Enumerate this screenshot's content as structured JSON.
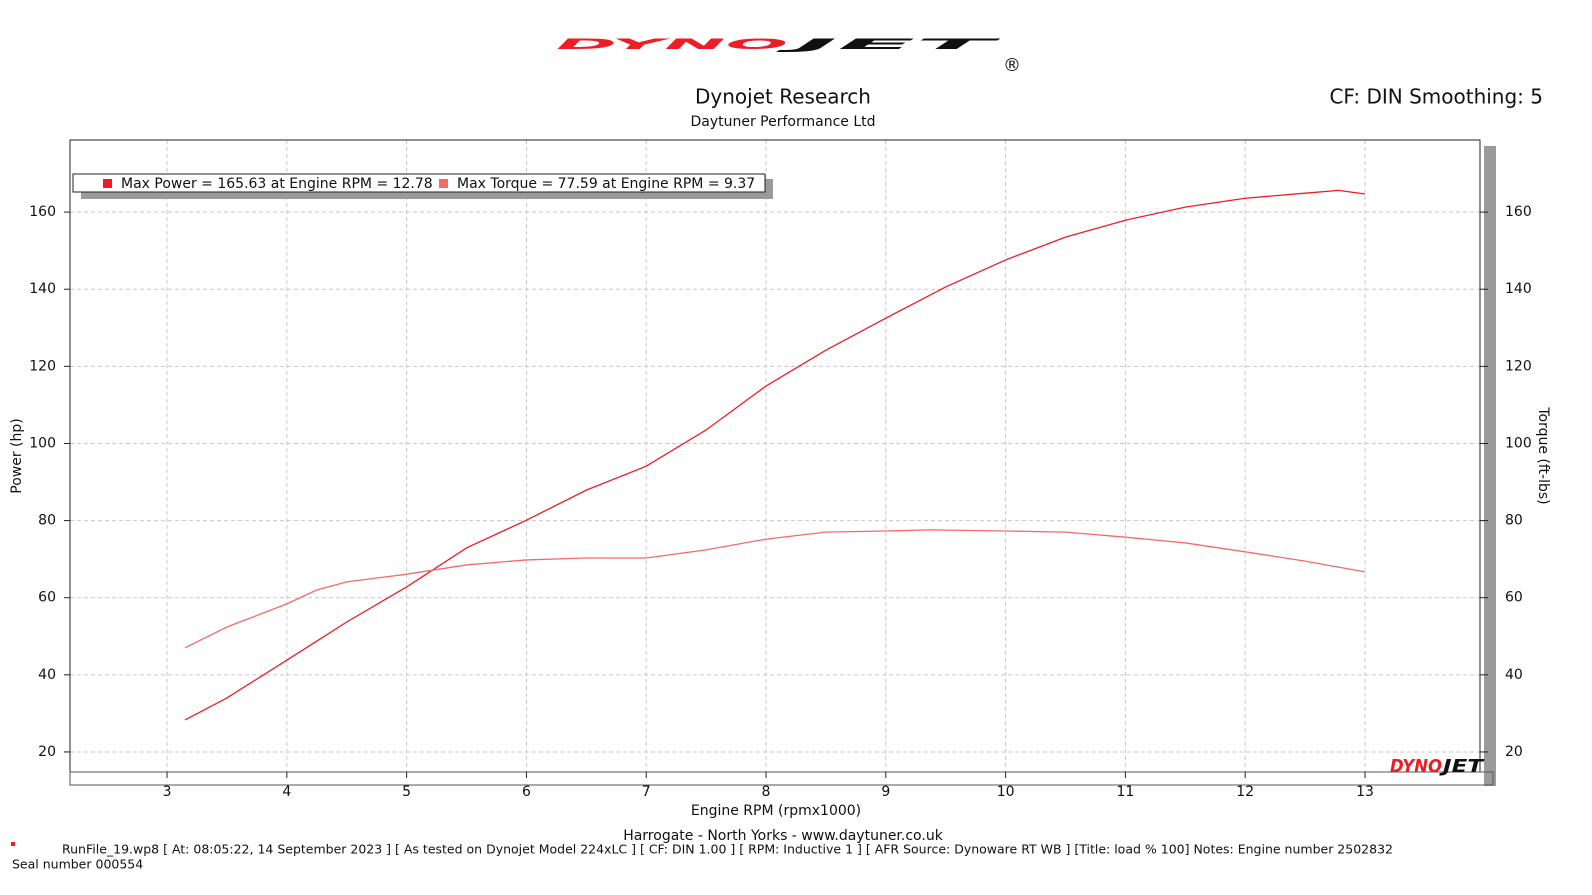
{
  "chart_data": {
    "type": "line",
    "logo_parts": [
      "DYNO",
      "JET",
      "®"
    ],
    "title": "Dynojet Research",
    "subtitle": "Daytuner Performance Ltd",
    "settings_label": "CF: DIN Smoothing: 5",
    "x_label": "Engine RPM (rpmx1000)",
    "y_label": "Power (hp)",
    "y2_label": "Torque (ft-lbs)",
    "footer": "Harrogate - North Yorks - www.daytuner.co.uk",
    "run_info": "RunFile_19.wp8 [ At: 08:05:22, 14 September 2023 ] [ As tested on Dynojet Model 224xLC ] [ CF: DIN 1.00 ] [ RPM: Inductive 1 ] [ AFR Source: Dynoware RT WB ] [Title:   load  %  100]  Notes: Engine number 2502832",
    "seal": "Seal number 000554",
    "xlim": [
      2.19,
      13.96
    ],
    "xticks": [
      3,
      4,
      5,
      6,
      7,
      8,
      9,
      10,
      11,
      12,
      13
    ],
    "ylim": [
      14.8,
      178.7
    ],
    "yticks": [
      20,
      40,
      60,
      80,
      100,
      120,
      140,
      160
    ],
    "y2lim": [
      14.8,
      178.7
    ],
    "y2ticks": [
      20,
      40,
      60,
      80,
      100,
      120,
      140,
      160
    ],
    "grid": true,
    "legend_position": "top-left",
    "series": [
      {
        "name": "Max Power = 165.63 at Engine RPM = 12.78",
        "color": "#ee1c25",
        "axis": "y",
        "x": [
          3.15,
          3.5,
          4.0,
          4.5,
          5.0,
          5.5,
          6.0,
          6.5,
          7.0,
          7.5,
          8.0,
          8.5,
          9.0,
          9.5,
          10.0,
          10.5,
          11.0,
          11.5,
          12.0,
          12.5,
          12.78,
          13.0
        ],
        "values": [
          28.3,
          34,
          43.8,
          53.7,
          62.8,
          72.9,
          80.1,
          87.9,
          94.1,
          103.5,
          114.9,
          124.2,
          132.5,
          140.6,
          147.6,
          153.5,
          157.9,
          161.3,
          163.6,
          164.9,
          165.63,
          164.7
        ]
      },
      {
        "name": "Max Torque = 77.59 at Engine RPM = 9.37",
        "color": "#f46a6a",
        "axis": "y2",
        "x": [
          3.15,
          3.5,
          4.0,
          4.25,
          4.5,
          5.0,
          5.5,
          6.0,
          6.5,
          7.0,
          7.5,
          8.0,
          8.5,
          9.0,
          9.37,
          10.0,
          10.5,
          11.0,
          11.5,
          12.0,
          12.5,
          13.0
        ],
        "values": [
          47,
          52.4,
          58.4,
          62,
          64.1,
          66.1,
          68.5,
          69.8,
          70.3,
          70.3,
          72.4,
          75.2,
          77.0,
          77.3,
          77.59,
          77.3,
          77.0,
          75.7,
          74.2,
          71.9,
          69.5,
          66.7
        ]
      }
    ]
  }
}
